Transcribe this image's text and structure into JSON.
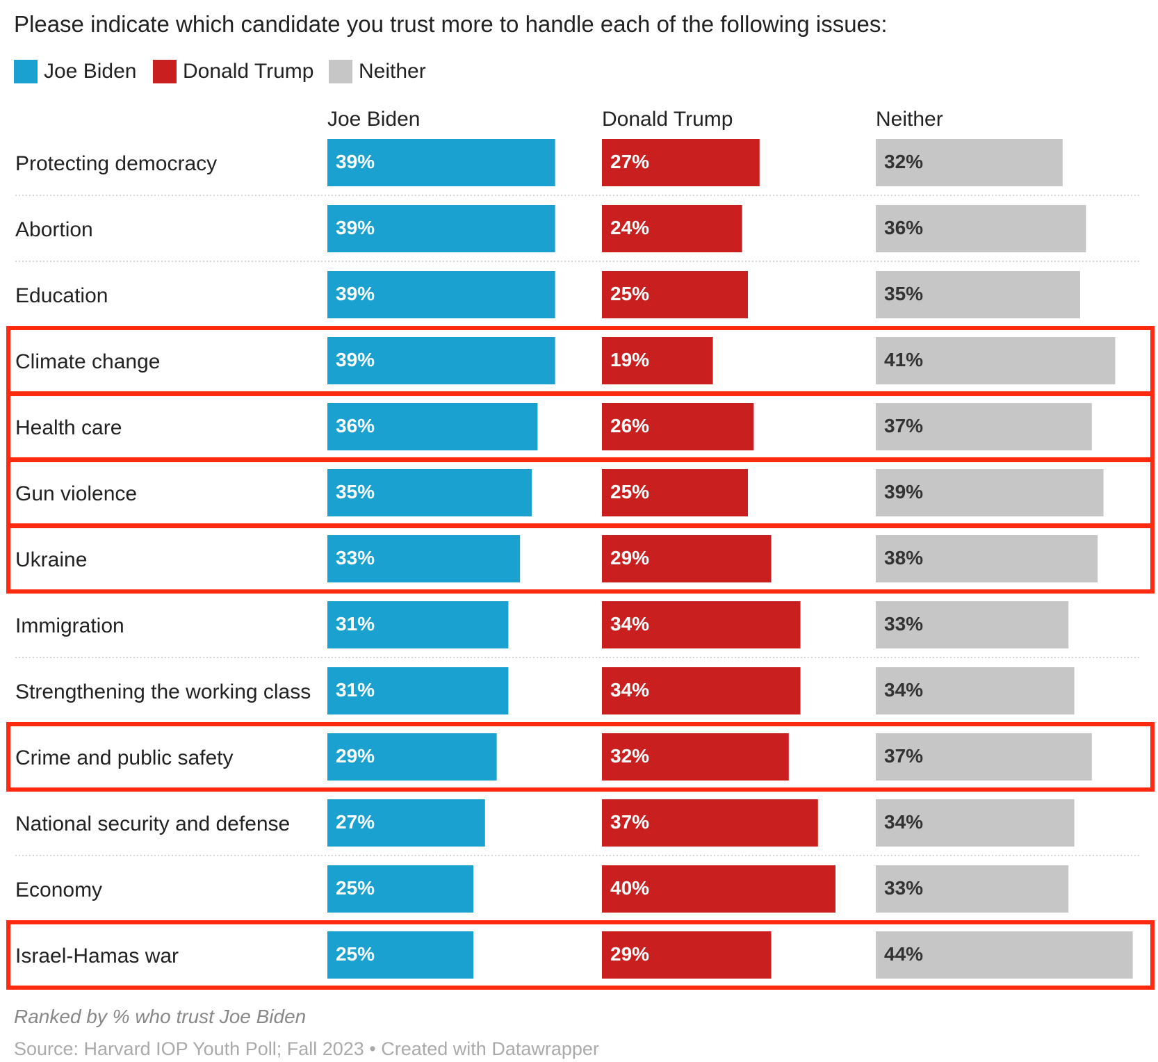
{
  "title": "Please indicate which candidate you trust more to handle each of the following issues:",
  "legend": [
    {
      "label": "Joe Biden",
      "color": "#1aa1cf"
    },
    {
      "label": "Donald Trump",
      "color": "#c91f1f"
    },
    {
      "label": "Neither",
      "color": "#c6c6c6"
    }
  ],
  "note": "Ranked by % who trust Joe Biden",
  "source": "Source: Harvard IOP Youth Poll; Fall 2023 • Created with Datawrapper",
  "highlight_color": "#ff2a10",
  "chart_data": {
    "type": "bar",
    "orientation": "horizontal",
    "layout": "small multiples (one column per series)",
    "categories": [
      "Protecting democracy",
      "Abortion",
      "Education",
      "Climate change",
      "Health care",
      "Gun violence",
      "Ukraine",
      "Immigration",
      "Strengthening the working class",
      "Crime and public safety",
      "National security and defense",
      "Economy",
      "Israel-Hamas war"
    ],
    "series": [
      {
        "name": "Joe Biden",
        "color": "#1aa1cf",
        "values": [
          39,
          39,
          39,
          39,
          36,
          35,
          33,
          31,
          31,
          29,
          27,
          25,
          25
        ]
      },
      {
        "name": "Donald Trump",
        "color": "#c91f1f",
        "values": [
          27,
          24,
          25,
          19,
          26,
          25,
          29,
          34,
          34,
          32,
          37,
          40,
          29
        ]
      },
      {
        "name": "Neither",
        "color": "#c6c6c6",
        "values": [
          32,
          36,
          35,
          41,
          37,
          39,
          38,
          33,
          34,
          37,
          34,
          33,
          44
        ]
      }
    ],
    "value_suffix": "%",
    "highlighted_groups": [
      [
        "Climate change"
      ],
      [
        "Health care"
      ],
      [
        "Gun violence"
      ],
      [
        "Ukraine"
      ],
      [
        "Crime and public safety"
      ],
      [
        "Israel-Hamas war"
      ]
    ],
    "grid": false,
    "legend_position": "top-left"
  }
}
